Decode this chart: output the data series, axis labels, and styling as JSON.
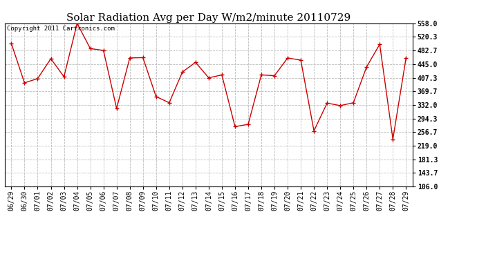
{
  "title": "Solar Radiation Avg per Day W/m2/minute 20110729",
  "copyright_text": "Copyright 2011 Cartronics.com",
  "dates": [
    "06/29",
    "06/30",
    "07/01",
    "07/02",
    "07/03",
    "07/04",
    "07/05",
    "07/06",
    "07/07",
    "07/08",
    "07/09",
    "07/10",
    "07/11",
    "07/12",
    "07/13",
    "07/14",
    "07/15",
    "07/16",
    "07/17",
    "07/18",
    "07/19",
    "07/20",
    "07/21",
    "07/22",
    "07/23",
    "07/24",
    "07/25",
    "07/26",
    "07/27",
    "07/28",
    "07/29"
  ],
  "values": [
    502,
    393,
    405,
    460,
    410,
    558,
    488,
    483,
    322,
    462,
    463,
    355,
    338,
    423,
    450,
    407,
    415,
    272,
    278,
    415,
    413,
    462,
    456,
    260,
    337,
    330,
    338,
    437,
    500,
    237,
    462
  ],
  "line_color": "#cc0000",
  "marker": "+",
  "marker_size": 5,
  "marker_color": "#cc0000",
  "background_color": "#ffffff",
  "grid_color": "#bbbbbb",
  "grid_linestyle": "--",
  "ylim": [
    106.0,
    558.0
  ],
  "yticks": [
    106.0,
    143.7,
    181.3,
    219.0,
    256.7,
    294.3,
    332.0,
    369.7,
    407.3,
    445.0,
    482.7,
    520.3,
    558.0
  ],
  "title_fontsize": 11,
  "tick_fontsize": 7,
  "copyright_fontsize": 6.5
}
